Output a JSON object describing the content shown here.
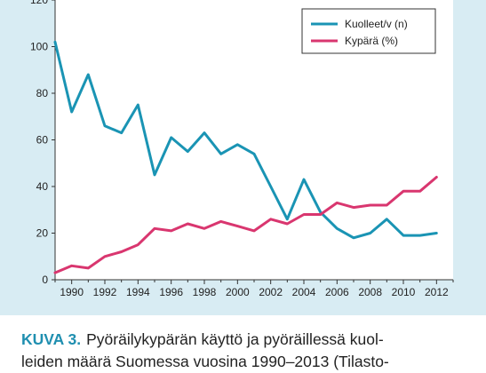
{
  "chart_data": {
    "type": "line",
    "x": [
      1989,
      1990,
      1991,
      1992,
      1993,
      1994,
      1995,
      1996,
      1997,
      1998,
      1999,
      2000,
      2001,
      2002,
      2003,
      2004,
      2005,
      2006,
      2007,
      2008,
      2009,
      2010,
      2011,
      2012,
      2013
    ],
    "series": [
      {
        "name": "Kuolleet/v (n)",
        "color": "#1a94b4",
        "values": [
          102,
          72,
          88,
          66,
          63,
          75,
          45,
          61,
          55,
          63,
          54,
          58,
          54,
          40,
          26,
          43,
          29,
          22,
          18,
          20,
          26,
          19,
          19,
          20,
          null
        ]
      },
      {
        "name": "Kypärä (%)",
        "color": "#d9366f",
        "values": [
          3,
          6,
          5,
          10,
          12,
          15,
          22,
          21,
          24,
          22,
          25,
          23,
          21,
          26,
          24,
          28,
          28,
          33,
          31,
          32,
          32,
          38,
          38,
          44,
          null
        ]
      }
    ],
    "xticks": [
      1990,
      1992,
      1994,
      1996,
      1998,
      2000,
      2002,
      2004,
      2006,
      2008,
      2010,
      2012
    ],
    "xtick_labels": [
      "1990",
      "1992",
      "1994",
      "1996",
      "1998",
      "2000",
      "2002",
      "2004",
      "2006",
      "2008",
      "2010",
      "2012"
    ],
    "yticks": [
      0,
      20,
      40,
      60,
      80,
      100,
      120
    ],
    "ytick_labels": [
      "0",
      "20",
      "40",
      "60",
      "80",
      "100",
      "120"
    ],
    "xlim": [
      1989,
      2013
    ],
    "ylim": [
      0,
      120
    ],
    "legend_position": "top-right",
    "xlabel": "",
    "ylabel": "",
    "title": ""
  },
  "caption": {
    "label": "KUVA 3.",
    "line1": "Pyöräilykypärän käyttö ja pyöräillessä kuol-",
    "line2": "leiden määrä Suomessa vuosina 1990–2013 (Tilasto-"
  }
}
